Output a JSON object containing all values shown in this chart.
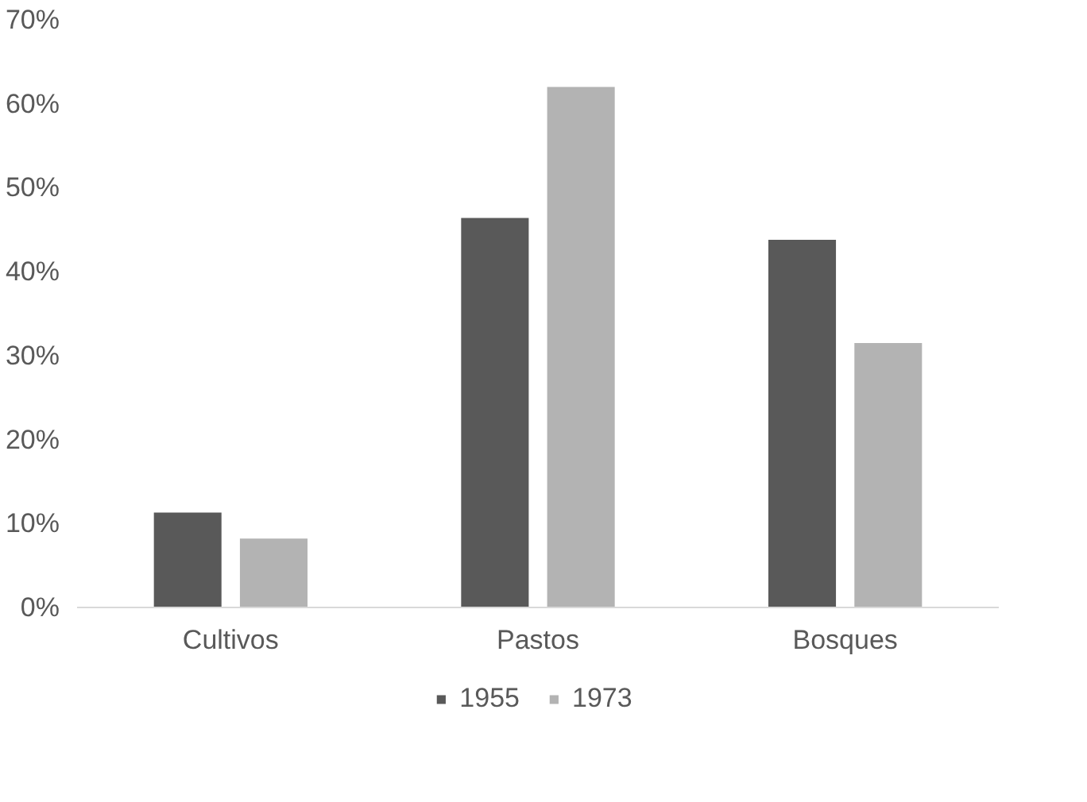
{
  "chart_data": {
    "type": "bar",
    "categories": [
      "Cultivos",
      "Pastos",
      "Bosques"
    ],
    "series": [
      {
        "name": "1955",
        "color": "#595959",
        "values": [
          11.3,
          46.4,
          43.8
        ]
      },
      {
        "name": "1973",
        "color": "#b3b3b3",
        "values": [
          8.2,
          62,
          31.5
        ]
      }
    ],
    "ylim": [
      0,
      70
    ],
    "yticks": [
      {
        "value": 0,
        "label": "0%"
      },
      {
        "value": 10,
        "label": "10%"
      },
      {
        "value": 20,
        "label": "20%"
      },
      {
        "value": 30,
        "label": "30%"
      },
      {
        "value": 40,
        "label": "40%"
      },
      {
        "value": 50,
        "label": "50%"
      },
      {
        "value": 60,
        "label": "60%"
      },
      {
        "value": 70,
        "label": "70%"
      }
    ],
    "grid": false,
    "legend": "bottom"
  }
}
